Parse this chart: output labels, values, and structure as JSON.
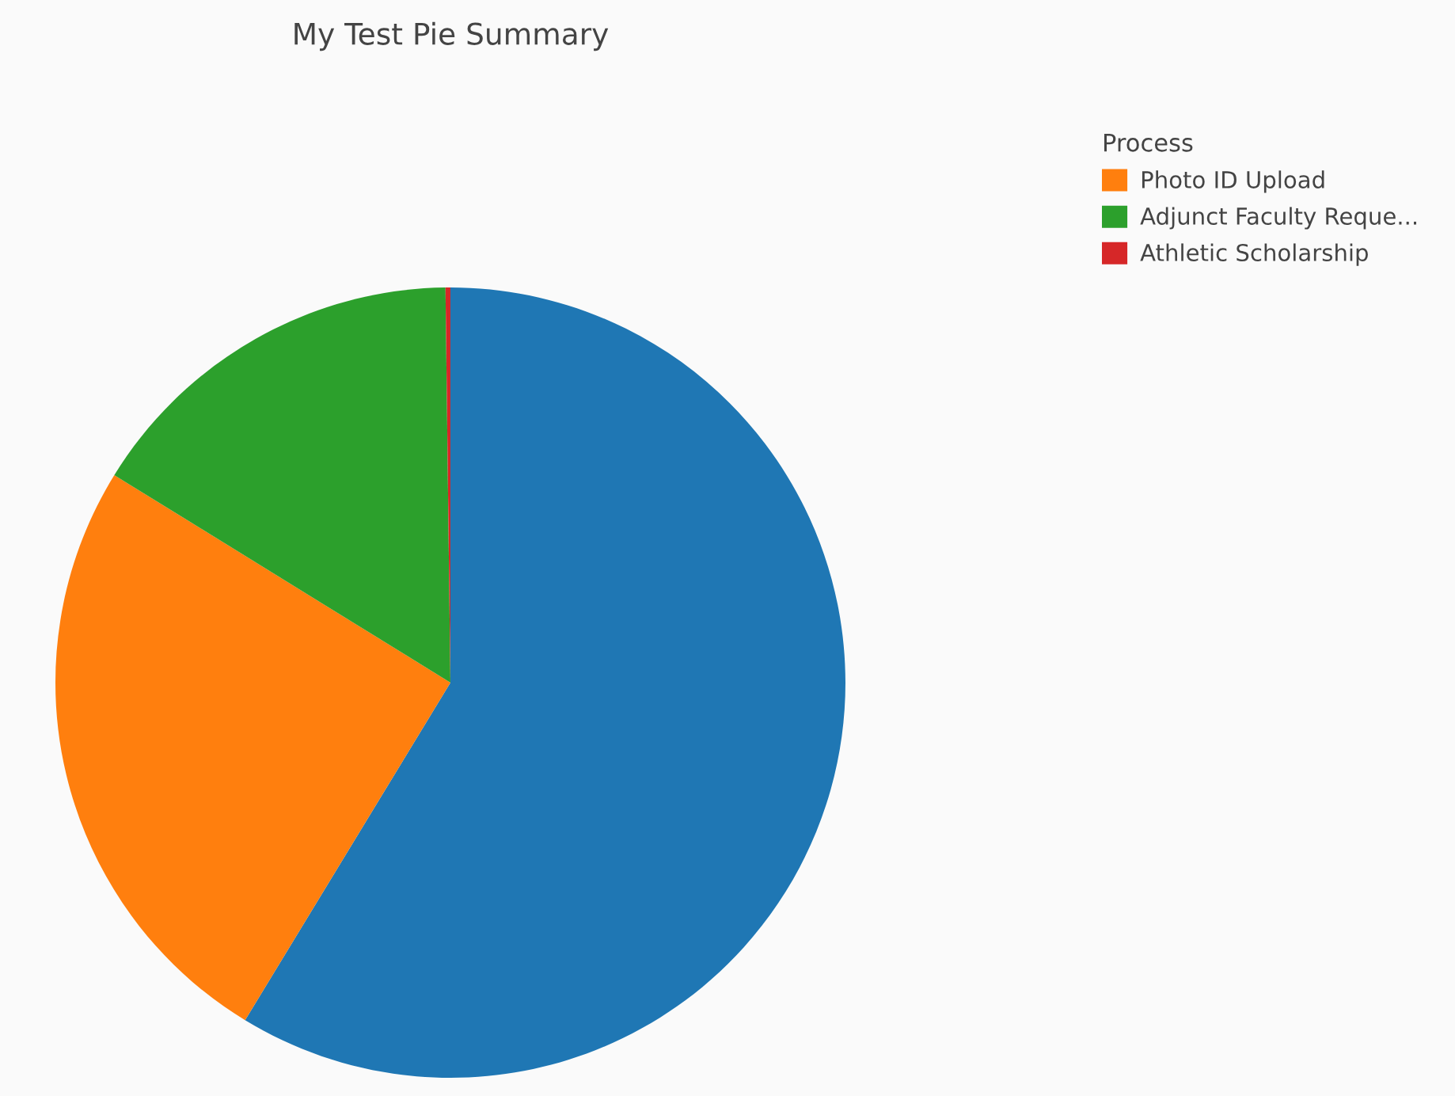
{
  "chart_data": {
    "type": "pie",
    "title": "My Test Pie Summary",
    "legend_title": "Process",
    "categories": [
      null,
      "Photo ID Upload",
      "Adjunct Faculty Reque...",
      "Athletic Scholarship"
    ],
    "values": [
      58.7,
      25.1,
      16.0,
      0.2
    ],
    "colors": [
      "#1f77b4",
      "#ff7f0e",
      "#2ca02c",
      "#d62728"
    ],
    "legend": "top right"
  }
}
